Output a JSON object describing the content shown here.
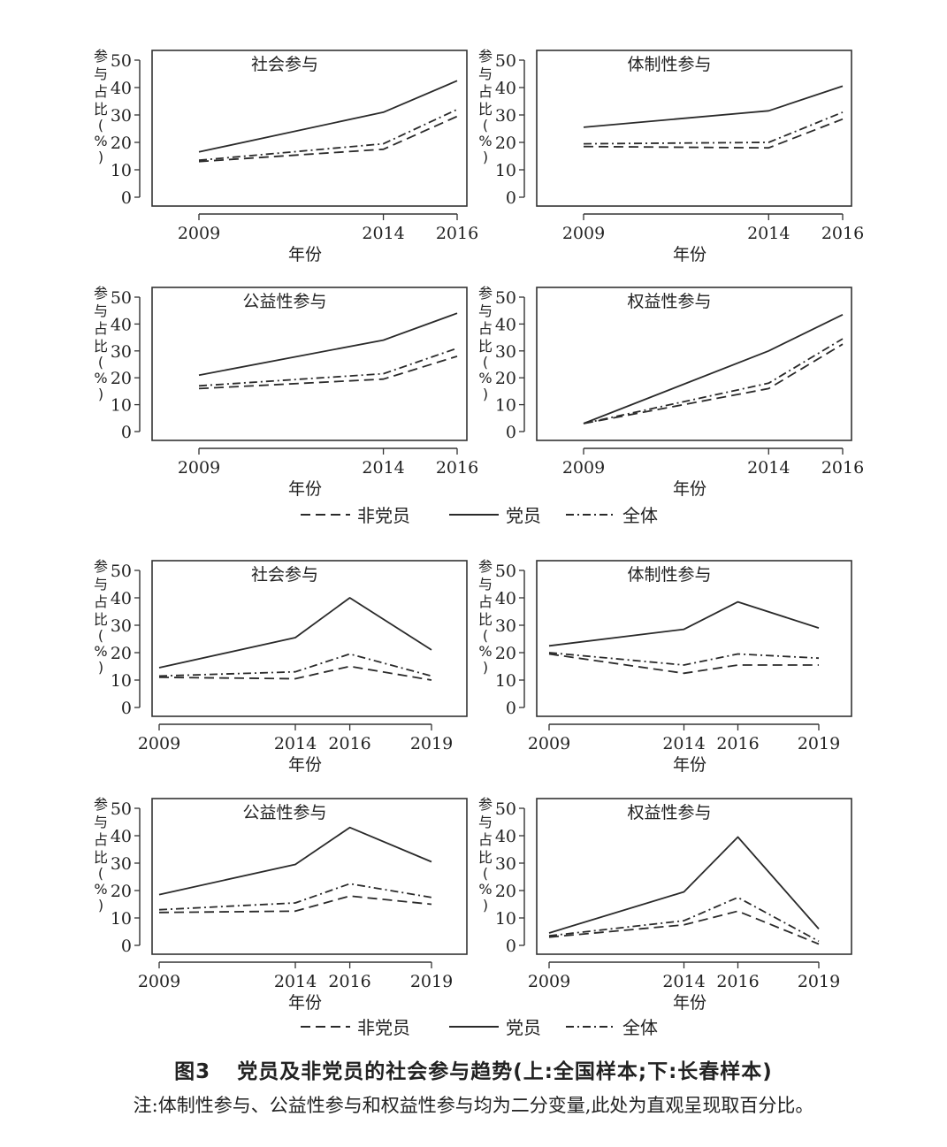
{
  "figure": {
    "number": "图3",
    "title": "党员及非党员的社会参与趋势(上:全国样本;下:长春样本)",
    "note": "注:体制性参与、公益性参与和权益性参与均为二分变量,此处为直观呈现取百分比。"
  },
  "legend": {
    "items": [
      {
        "label": "非党员",
        "style": "dashed"
      },
      {
        "label": "党员",
        "style": "solid"
      },
      {
        "label": "全体",
        "style": "dashdot"
      }
    ]
  },
  "chart_data": [
    {
      "type": "line",
      "sample": "national",
      "title": "社会参与",
      "xlabel": "年份",
      "ylabel": "参与占比(%)",
      "x": [
        2009,
        2014,
        2016
      ],
      "xlim": [
        2009,
        2016
      ],
      "ylim": [
        0,
        50
      ],
      "yticks": [
        0,
        10,
        20,
        30,
        40,
        50
      ],
      "series": [
        {
          "name": "非党员",
          "style": "dashed",
          "values": [
            13,
            17.5,
            29.5
          ]
        },
        {
          "name": "党员",
          "style": "solid",
          "values": [
            16.5,
            31,
            42.5
          ]
        },
        {
          "name": "全体",
          "style": "dashdot",
          "values": [
            13.5,
            19.5,
            32
          ]
        }
      ]
    },
    {
      "type": "line",
      "sample": "national",
      "title": "体制性参与",
      "xlabel": "年份",
      "ylabel": "参与占比(%)",
      "x": [
        2009,
        2014,
        2016
      ],
      "xlim": [
        2009,
        2016
      ],
      "ylim": [
        0,
        50
      ],
      "yticks": [
        0,
        10,
        20,
        30,
        40,
        50
      ],
      "series": [
        {
          "name": "非党员",
          "style": "dashed",
          "values": [
            18.5,
            18,
            28.5
          ]
        },
        {
          "name": "党员",
          "style": "solid",
          "values": [
            25.5,
            31.5,
            40.5
          ]
        },
        {
          "name": "全体",
          "style": "dashdot",
          "values": [
            19.5,
            20,
            31
          ]
        }
      ]
    },
    {
      "type": "line",
      "sample": "national",
      "title": "公益性参与",
      "xlabel": "年份",
      "ylabel": "参与占比(%)",
      "x": [
        2009,
        2014,
        2016
      ],
      "xlim": [
        2009,
        2016
      ],
      "ylim": [
        0,
        50
      ],
      "yticks": [
        0,
        10,
        20,
        30,
        40,
        50
      ],
      "series": [
        {
          "name": "非党员",
          "style": "dashed",
          "values": [
            16,
            19.5,
            28
          ]
        },
        {
          "name": "党员",
          "style": "solid",
          "values": [
            21,
            34,
            44
          ]
        },
        {
          "name": "全体",
          "style": "dashdot",
          "values": [
            17,
            21.5,
            31
          ]
        }
      ]
    },
    {
      "type": "line",
      "sample": "national",
      "title": "权益性参与",
      "xlabel": "年份",
      "ylabel": "参与占比(%)",
      "x": [
        2009,
        2014,
        2016
      ],
      "xlim": [
        2009,
        2016
      ],
      "ylim": [
        0,
        50
      ],
      "yticks": [
        0,
        10,
        20,
        30,
        40,
        50
      ],
      "series": [
        {
          "name": "非党员",
          "style": "dashed",
          "values": [
            3,
            16,
            32.5
          ]
        },
        {
          "name": "党员",
          "style": "solid",
          "values": [
            3,
            30,
            43.5
          ]
        },
        {
          "name": "全体",
          "style": "dashdot",
          "values": [
            3,
            18,
            34.5
          ]
        }
      ]
    },
    {
      "type": "line",
      "sample": "changchun",
      "title": "社会参与",
      "xlabel": "年份",
      "ylabel": "参与占比(%)",
      "x": [
        2009,
        2014,
        2016,
        2019
      ],
      "xlim": [
        2009,
        2019
      ],
      "ylim": [
        0,
        50
      ],
      "yticks": [
        0,
        10,
        20,
        30,
        40,
        50
      ],
      "series": [
        {
          "name": "非党员",
          "style": "dashed",
          "values": [
            11,
            10.5,
            15,
            10
          ]
        },
        {
          "name": "党员",
          "style": "solid",
          "values": [
            14.5,
            25.5,
            40,
            21
          ]
        },
        {
          "name": "全体",
          "style": "dashdot",
          "values": [
            11.5,
            13,
            19.5,
            11.5
          ]
        }
      ]
    },
    {
      "type": "line",
      "sample": "changchun",
      "title": "体制性参与",
      "xlabel": "年份",
      "ylabel": "参与占比(%)",
      "x": [
        2009,
        2014,
        2016,
        2019
      ],
      "xlim": [
        2009,
        2019
      ],
      "ylim": [
        0,
        50
      ],
      "yticks": [
        0,
        10,
        20,
        30,
        40,
        50
      ],
      "series": [
        {
          "name": "非党员",
          "style": "dashed",
          "values": [
            19.5,
            12.5,
            15.5,
            15.5
          ]
        },
        {
          "name": "党员",
          "style": "solid",
          "values": [
            22.5,
            28.5,
            38.5,
            29
          ]
        },
        {
          "name": "全体",
          "style": "dashdot",
          "values": [
            20,
            15.5,
            19.5,
            18
          ]
        }
      ]
    },
    {
      "type": "line",
      "sample": "changchun",
      "title": "公益性参与",
      "xlabel": "年份",
      "ylabel": "参与占比(%)",
      "x": [
        2009,
        2014,
        2016,
        2019
      ],
      "xlim": [
        2009,
        2019
      ],
      "ylim": [
        0,
        50
      ],
      "yticks": [
        0,
        10,
        20,
        30,
        40,
        50
      ],
      "series": [
        {
          "name": "非党员",
          "style": "dashed",
          "values": [
            12,
            12.5,
            18,
            15
          ]
        },
        {
          "name": "党员",
          "style": "solid",
          "values": [
            18.5,
            29.5,
            43,
            30.5
          ]
        },
        {
          "name": "全体",
          "style": "dashdot",
          "values": [
            13,
            15.5,
            22.5,
            17.5
          ]
        }
      ]
    },
    {
      "type": "line",
      "sample": "changchun",
      "title": "权益性参与",
      "xlabel": "年份",
      "ylabel": "参与占比(%)",
      "x": [
        2009,
        2014,
        2016,
        2019
      ],
      "xlim": [
        2009,
        2019
      ],
      "ylim": [
        0,
        50
      ],
      "yticks": [
        0,
        10,
        20,
        30,
        40,
        50
      ],
      "series": [
        {
          "name": "非党员",
          "style": "dashed",
          "values": [
            3,
            7.5,
            12.5,
            0.5
          ]
        },
        {
          "name": "党员",
          "style": "solid",
          "values": [
            4.5,
            19.5,
            39.5,
            6
          ]
        },
        {
          "name": "全体",
          "style": "dashdot",
          "values": [
            3.5,
            9,
            17.5,
            1.5
          ]
        }
      ]
    }
  ]
}
